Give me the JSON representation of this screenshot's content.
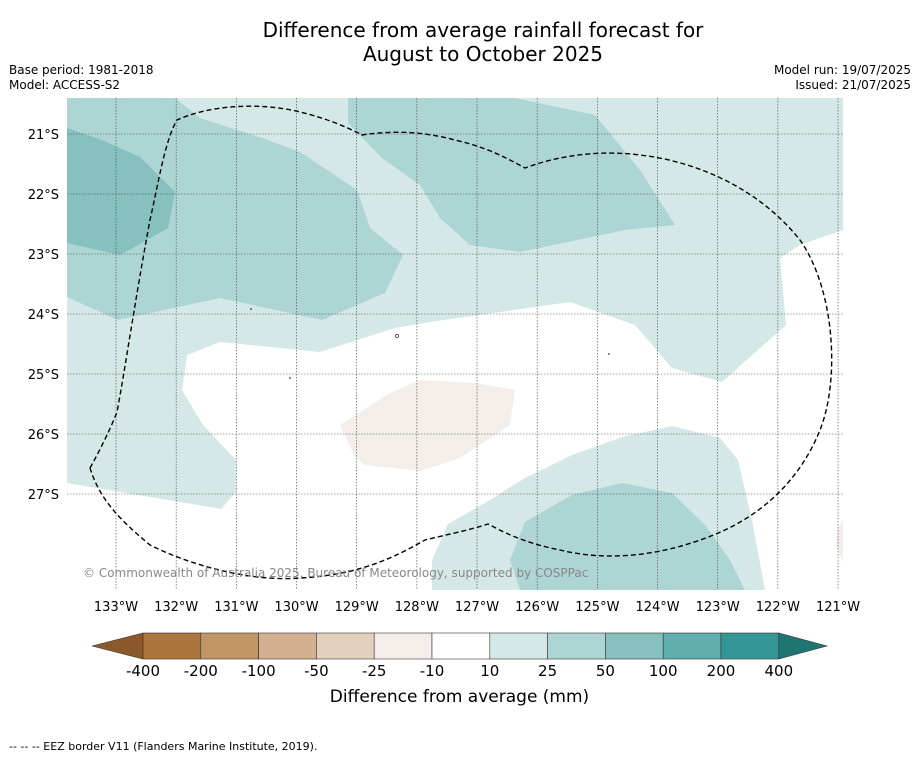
{
  "title": {
    "line1": "Difference from average rainfall forecast for",
    "line2": "August to October 2025"
  },
  "meta": {
    "base_period": "Base period: 1981-2018",
    "model": "Model: ACCESS-S2",
    "model_run": "Model run: 19/07/2025",
    "issued": "Issued: 21/07/2025"
  },
  "map": {
    "lat_ticks": [
      "21°S",
      "22°S",
      "23°S",
      "24°S",
      "25°S",
      "26°S",
      "27°S"
    ],
    "lon_ticks": [
      "133°W",
      "132°W",
      "131°W",
      "130°W",
      "129°W",
      "128°W",
      "127°W",
      "126°W",
      "125°W",
      "124°W",
      "123°W",
      "122°W",
      "121°W"
    ],
    "copyright": "© Commonwealth of Australia 2025, Bureau of Meteorology, supported by COSPPac",
    "colors": {
      "ocean_10_25": "#d4e8e7",
      "ocean_25_50": "#acd5d4",
      "ocean_50_100": "#86c1c0",
      "dry_m10_m25": "#f3eeea",
      "eez_line": "#000000"
    }
  },
  "colorbar": {
    "labels": [
      "-400",
      "-200",
      "-100",
      "-50",
      "-25",
      "-10",
      "10",
      "25",
      "50",
      "100",
      "200",
      "400"
    ],
    "colors": [
      "#8c5a2a",
      "#ac753d",
      "#c29567",
      "#d3b08f",
      "#e4d1bd",
      "#f3eeea",
      "#ffffff",
      "#d4e8e7",
      "#acd5d4",
      "#86c1c0",
      "#5fadad",
      "#349795",
      "#1e7573"
    ],
    "title": "Difference from average (mm)"
  },
  "footer": "--  --  -- EEZ border V11 (Flanders Marine Institute, 2019)."
}
